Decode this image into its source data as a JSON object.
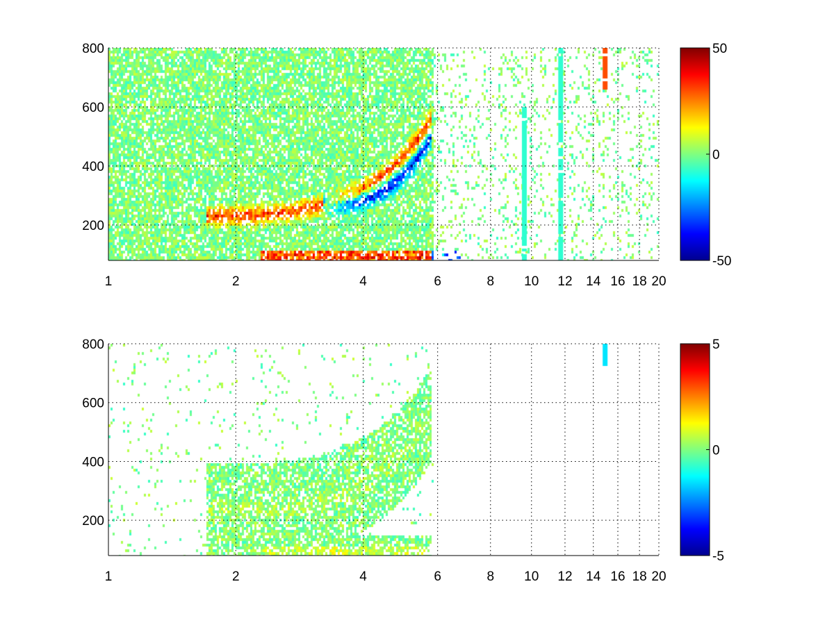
{
  "chart_data": [
    {
      "type": "heatmap",
      "xscale": "log",
      "xlim": [
        1,
        20
      ],
      "ylim": [
        80,
        800
      ],
      "x_ticks": [
        1,
        2,
        4,
        6,
        8,
        10,
        12,
        14,
        16,
        18,
        20
      ],
      "x_tick_labels": [
        "1",
        "2",
        "4",
        "6",
        "8",
        "10",
        "12",
        "14",
        "16",
        "18",
        "20"
      ],
      "y_ticks": [
        200,
        400,
        600,
        800
      ],
      "y_tick_labels": [
        "200",
        "400",
        "600",
        "800"
      ],
      "grid": true,
      "colormap": "jet",
      "clim": [
        -50,
        50
      ],
      "colorbar_ticks": [
        50,
        0,
        -50
      ],
      "colorbar_tick_labels": [
        "50",
        "0",
        "-50"
      ],
      "features": [
        {
          "shape": "arc",
          "x_range": [
            1.7,
            5.8
          ],
          "y_range": [
            230,
            560
          ],
          "value": 40
        },
        {
          "shape": "arc",
          "x_range": [
            3.2,
            5.8
          ],
          "y_range": [
            270,
            500
          ],
          "value": -45
        },
        {
          "shape": "band",
          "x_range": [
            2.3,
            5.8
          ],
          "y_range": [
            80,
            110
          ],
          "value": 40
        },
        {
          "shape": "band",
          "x_range": [
            5.8,
            6.8
          ],
          "y_range": [
            80,
            110
          ],
          "value": -35
        },
        {
          "shape": "stripe",
          "x": 9.6,
          "y_range": [
            80,
            600
          ],
          "value": -8
        },
        {
          "shape": "stripe",
          "x": 11.7,
          "y_range": [
            80,
            800
          ],
          "value": -8
        },
        {
          "shape": "stripe",
          "x": 14.9,
          "y_range": [
            660,
            800
          ],
          "value": 30
        }
      ]
    },
    {
      "type": "heatmap",
      "xscale": "log",
      "xlim": [
        1,
        20
      ],
      "ylim": [
        80,
        800
      ],
      "x_ticks": [
        1,
        2,
        4,
        6,
        8,
        10,
        12,
        14,
        16,
        18,
        20
      ],
      "x_tick_labels": [
        "1",
        "2",
        "4",
        "6",
        "8",
        "10",
        "12",
        "14",
        "16",
        "18",
        "20"
      ],
      "y_ticks": [
        200,
        400,
        600,
        800
      ],
      "y_tick_labels": [
        "200",
        "400",
        "600",
        "800"
      ],
      "grid": true,
      "colormap": "jet",
      "clim": [
        -5,
        5
      ],
      "colorbar_ticks": [
        5,
        0,
        -5
      ],
      "colorbar_tick_labels": [
        "5",
        "0",
        "-5"
      ],
      "features": [
        {
          "shape": "arc",
          "x_range": [
            1.7,
            5.8
          ],
          "y_range": [
            230,
            560
          ],
          "value": 0.5
        },
        {
          "shape": "band",
          "x_range": [
            2.3,
            5.8
          ],
          "y_range": [
            80,
            110
          ],
          "value": 0.8
        },
        {
          "shape": "stripe",
          "x": 14.9,
          "y_range": [
            730,
            800
          ],
          "value": -1.5
        }
      ]
    }
  ]
}
